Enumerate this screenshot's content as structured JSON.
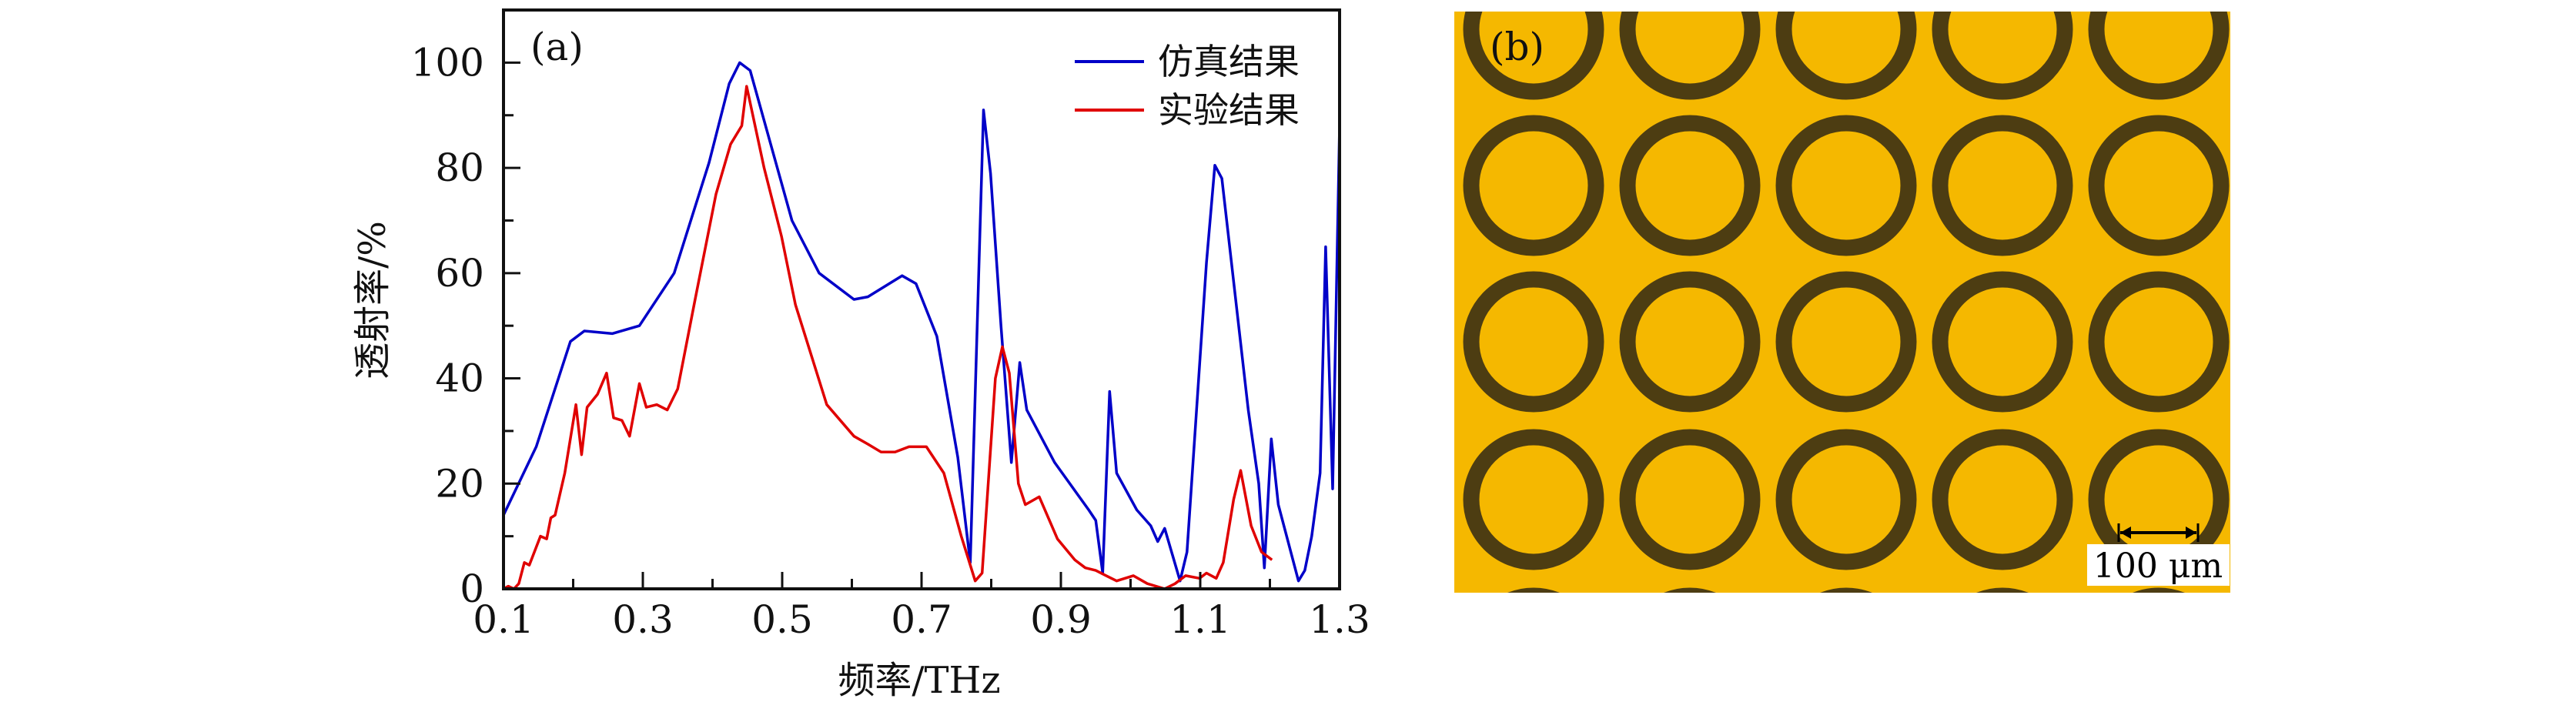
{
  "chart_data": [
    {
      "panel_label": "(a)",
      "type": "line",
      "xlabel": "频率/THz",
      "ylabel": "透射率/%",
      "xlim": [
        0.1,
        1.3
      ],
      "ylim": [
        0,
        110
      ],
      "xticks": [
        "0.1",
        "0.3",
        "0.5",
        "0.7",
        "0.9",
        "1.1",
        "1.3"
      ],
      "yticks": [
        "0",
        "20",
        "40",
        "60",
        "80",
        "100"
      ],
      "grid": false,
      "legend_position": "top-right",
      "series": [
        {
          "name": "仿真结果",
          "color": "#0000c8",
          "x": [
            0.1,
            0.147,
            0.196,
            0.216,
            0.256,
            0.295,
            0.345,
            0.395,
            0.424,
            0.439,
            0.454,
            0.514,
            0.553,
            0.603,
            0.623,
            0.672,
            0.692,
            0.722,
            0.752,
            0.77,
            0.789,
            0.799,
            0.814,
            0.829,
            0.841,
            0.851,
            0.891,
            0.94,
            0.95,
            0.96,
            0.97,
            0.98,
            1.009,
            1.029,
            1.039,
            1.049,
            1.071,
            1.081,
            1.109,
            1.121,
            1.131,
            1.169,
            1.184,
            1.192,
            1.202,
            1.212,
            1.241,
            1.25,
            1.26,
            1.272,
            1.28,
            1.29,
            1.3
          ],
          "y": [
            14,
            27,
            47,
            49,
            48.5,
            50,
            60,
            81,
            96,
            100,
            98.5,
            70,
            60,
            55,
            55.5,
            59.5,
            58,
            48,
            25,
            5,
            91,
            79,
            50,
            24,
            43,
            34,
            24,
            15,
            13,
            3,
            37.5,
            22,
            15,
            12,
            9,
            11.5,
            1.5,
            7,
            62,
            80.5,
            78,
            34,
            20,
            4,
            28.5,
            16,
            1.5,
            3.5,
            10,
            22,
            65,
            19,
            88
          ]
        },
        {
          "name": "实验结果",
          "color": "#e00000",
          "x": [
            0.1,
            0.107,
            0.115,
            0.122,
            0.13,
            0.137,
            0.153,
            0.162,
            0.168,
            0.174,
            0.188,
            0.204,
            0.212,
            0.22,
            0.235,
            0.248,
            0.258,
            0.27,
            0.281,
            0.295,
            0.305,
            0.32,
            0.335,
            0.35,
            0.375,
            0.405,
            0.426,
            0.442,
            0.449,
            0.474,
            0.499,
            0.519,
            0.564,
            0.603,
            0.623,
            0.642,
            0.662,
            0.682,
            0.707,
            0.732,
            0.757,
            0.777,
            0.787,
            0.806,
            0.816,
            0.826,
            0.839,
            0.849,
            0.869,
            0.895,
            0.92,
            0.935,
            0.95,
            0.965,
            0.98,
            1.004,
            1.024,
            1.049,
            1.064,
            1.079,
            1.099,
            1.109,
            1.123,
            1.133,
            1.148,
            1.158,
            1.173,
            1.188,
            1.203
          ],
          "y": [
            0,
            0.5,
            0,
            1,
            5,
            4.5,
            10,
            9.5,
            13.5,
            14,
            22,
            35,
            25.5,
            34.5,
            37,
            41,
            32.5,
            32,
            29,
            39,
            34.5,
            35,
            34,
            38,
            55,
            75,
            84.5,
            88,
            95.5,
            80,
            67,
            54,
            35,
            29,
            27.5,
            26,
            26,
            27,
            27,
            22,
            10,
            1.5,
            3,
            40,
            46,
            41,
            20,
            16,
            17.5,
            9.5,
            5.5,
            4,
            3.5,
            2.5,
            1.5,
            2.5,
            1,
            0,
            1,
            2.5,
            2,
            3,
            2,
            5,
            17,
            22.5,
            12,
            7,
            5.5
          ]
        }
      ]
    }
  ],
  "image_panel": {
    "panel_label": "(b)",
    "scale_bar_label": "100 μm",
    "background_color": "#f5b800",
    "ring_color": "#4d3d12"
  }
}
